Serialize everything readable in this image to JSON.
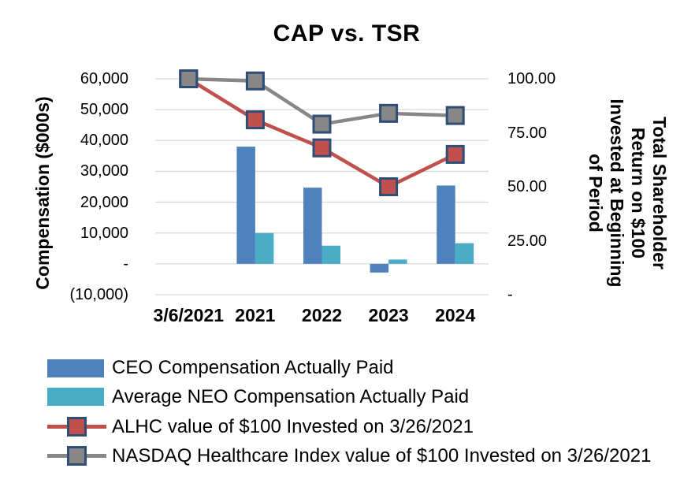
{
  "chart_data": {
    "type": "combo",
    "title": "CAP vs. TSR",
    "categories": [
      "3/6/2021",
      "2021",
      "2022",
      "2023",
      "2024"
    ],
    "bar_series": [
      {
        "name": "CEO Compensation Actually Paid",
        "type": "bar",
        "axis": "left",
        "color": "#4F81BD",
        "values": [
          null,
          38000,
          24700,
          -2800,
          25400
        ]
      },
      {
        "name": "Average NEO Compensation Actually Paid",
        "type": "bar",
        "axis": "left",
        "color": "#4BACC6",
        "values": [
          null,
          10000,
          5900,
          1400,
          6700
        ]
      }
    ],
    "line_series": [
      {
        "name": "ALHC value of $100 Invested on 3/26/2021",
        "type": "line",
        "axis": "right",
        "color": "#C0504D",
        "marker": "square",
        "marker_border": "#2E4D77",
        "values": [
          100,
          81,
          68,
          50,
          65
        ]
      },
      {
        "name": "NASDAQ Healthcare Index value of $100 Invested on 3/26/2021",
        "type": "line",
        "axis": "right",
        "color": "#878787",
        "marker": "square",
        "marker_border": "#2E4D77",
        "values": [
          100,
          99,
          79,
          84,
          83
        ]
      }
    ],
    "left_axis": {
      "title": "Compensation ($000s)",
      "tick_labels": [
        "60,000",
        "50,000",
        "40,000",
        "30,000",
        "20,000",
        "10,000",
        "-",
        "(10,000)"
      ],
      "tick_values": [
        60000,
        50000,
        40000,
        30000,
        20000,
        10000,
        0,
        -10000
      ],
      "min": -10000,
      "max": 60000
    },
    "right_axis": {
      "title_lines": [
        "Total Shareholder",
        "Return on $100",
        "Invested at Beginning",
        "of Period"
      ],
      "tick_labels": [
        "100.00",
        "75.00",
        "50.00",
        "25.00",
        "-"
      ],
      "tick_values": [
        100,
        75,
        50,
        25,
        0
      ],
      "min": 0,
      "max": 100
    },
    "grid": "horizontal",
    "gridline_color": "#D9D9D9",
    "background_color": "#FFFFFF",
    "text_color": "#000000",
    "legend_position": "bottom-left"
  }
}
